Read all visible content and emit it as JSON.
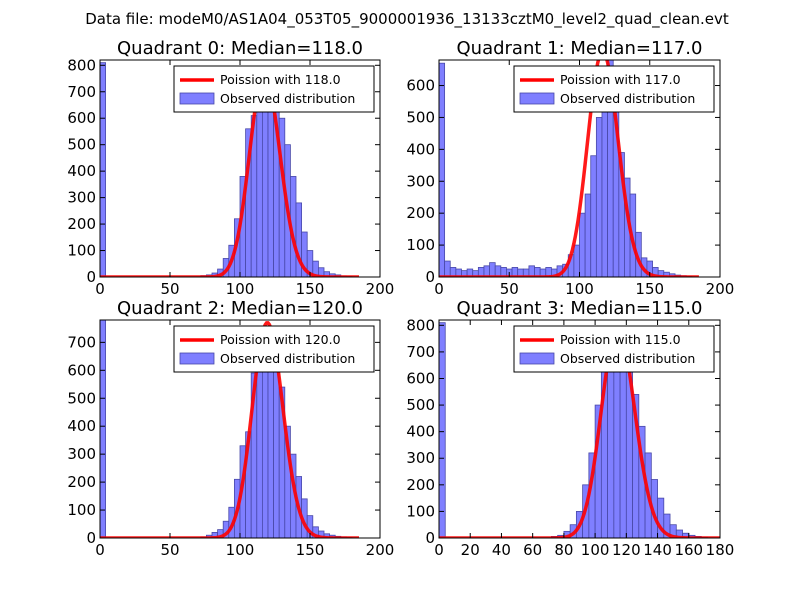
{
  "page_title": "Data file: modeM0/AS1A04_053T05_9000001936_13133cztM0_level2_quad_clean.evt",
  "colors": {
    "hist_fill": "#7f7fff",
    "hist_edge": "#4848a8",
    "poisson_line": "#ff0000"
  },
  "chart_data": [
    {
      "type": "bar",
      "title": "Quadrant 0: Median=118.0",
      "median": 118.0,
      "xlim": [
        0,
        200
      ],
      "ylim": [
        0,
        820
      ],
      "xticks": [
        0,
        50,
        100,
        150,
        200
      ],
      "yticks": [
        0,
        100,
        200,
        300,
        400,
        500,
        600,
        700,
        800
      ],
      "bin_width": 4,
      "bins": [
        [
          0,
          810
        ],
        [
          72,
          5
        ],
        [
          76,
          8
        ],
        [
          80,
          15
        ],
        [
          84,
          30
        ],
        [
          88,
          70
        ],
        [
          92,
          120
        ],
        [
          96,
          220
        ],
        [
          100,
          380
        ],
        [
          104,
          560
        ],
        [
          108,
          610
        ],
        [
          112,
          700
        ],
        [
          116,
          740
        ],
        [
          120,
          720
        ],
        [
          124,
          690
        ],
        [
          128,
          600
        ],
        [
          132,
          500
        ],
        [
          136,
          380
        ],
        [
          140,
          280
        ],
        [
          144,
          170
        ],
        [
          148,
          100
        ],
        [
          152,
          60
        ],
        [
          156,
          35
        ],
        [
          160,
          20
        ],
        [
          164,
          12
        ],
        [
          168,
          8
        ],
        [
          172,
          4
        ],
        [
          176,
          2
        ]
      ],
      "legend": [
        "Poission with 118.0",
        "Observed distribution"
      ]
    },
    {
      "type": "bar",
      "title": "Quadrant 1: Median=117.0",
      "median": 117.0,
      "xlim": [
        0,
        200
      ],
      "ylim": [
        0,
        680
      ],
      "xticks": [
        0,
        50,
        100,
        150,
        200
      ],
      "yticks": [
        0,
        100,
        200,
        300,
        400,
        500,
        600
      ],
      "bin_width": 4,
      "bins": [
        [
          0,
          670
        ],
        [
          4,
          50
        ],
        [
          8,
          30
        ],
        [
          12,
          25
        ],
        [
          16,
          20
        ],
        [
          20,
          25
        ],
        [
          24,
          20
        ],
        [
          28,
          30
        ],
        [
          32,
          35
        ],
        [
          36,
          45
        ],
        [
          40,
          35
        ],
        [
          44,
          30
        ],
        [
          48,
          25
        ],
        [
          52,
          30
        ],
        [
          56,
          25
        ],
        [
          60,
          25
        ],
        [
          64,
          35
        ],
        [
          68,
          30
        ],
        [
          72,
          25
        ],
        [
          76,
          30
        ],
        [
          80,
          25
        ],
        [
          84,
          35
        ],
        [
          88,
          40
        ],
        [
          92,
          70
        ],
        [
          96,
          100
        ],
        [
          100,
          200
        ],
        [
          104,
          260
        ],
        [
          108,
          380
        ],
        [
          112,
          500
        ],
        [
          116,
          590
        ],
        [
          120,
          680
        ],
        [
          124,
          520
        ],
        [
          128,
          390
        ],
        [
          132,
          310
        ],
        [
          136,
          260
        ],
        [
          140,
          140
        ],
        [
          144,
          60
        ],
        [
          148,
          50
        ],
        [
          152,
          30
        ],
        [
          156,
          20
        ],
        [
          160,
          15
        ],
        [
          164,
          10
        ],
        [
          168,
          6
        ],
        [
          172,
          4
        ],
        [
          176,
          2
        ]
      ],
      "legend": [
        "Poission with 117.0",
        "Observed distribution"
      ]
    },
    {
      "type": "bar",
      "title": "Quadrant 2: Median=120.0",
      "median": 120.0,
      "xlim": [
        0,
        200
      ],
      "ylim": [
        0,
        780
      ],
      "xticks": [
        0,
        50,
        100,
        150,
        200
      ],
      "yticks": [
        0,
        100,
        200,
        300,
        400,
        500,
        600,
        700
      ],
      "bin_width": 4,
      "bins": [
        [
          0,
          780
        ],
        [
          72,
          4
        ],
        [
          76,
          10
        ],
        [
          80,
          20
        ],
        [
          84,
          30
        ],
        [
          88,
          60
        ],
        [
          92,
          110
        ],
        [
          96,
          210
        ],
        [
          100,
          330
        ],
        [
          104,
          380
        ],
        [
          108,
          590
        ],
        [
          112,
          660
        ],
        [
          116,
          740
        ],
        [
          120,
          700
        ],
        [
          124,
          640
        ],
        [
          128,
          540
        ],
        [
          132,
          400
        ],
        [
          136,
          300
        ],
        [
          140,
          220
        ],
        [
          144,
          140
        ],
        [
          148,
          80
        ],
        [
          152,
          40
        ],
        [
          156,
          25
        ],
        [
          160,
          15
        ],
        [
          164,
          10
        ],
        [
          168,
          6
        ],
        [
          172,
          4
        ],
        [
          176,
          2
        ]
      ],
      "legend": [
        "Poission with 120.0",
        "Observed distribution"
      ]
    },
    {
      "type": "bar",
      "title": "Quadrant 3: Median=115.0",
      "median": 115.0,
      "xlim": [
        0,
        180
      ],
      "ylim": [
        0,
        820
      ],
      "xticks": [
        0,
        20,
        40,
        60,
        80,
        100,
        120,
        140,
        160,
        180
      ],
      "yticks": [
        0,
        100,
        200,
        300,
        400,
        500,
        600,
        700,
        800
      ],
      "bin_width": 4,
      "bins": [
        [
          0,
          810
        ],
        [
          72,
          6
        ],
        [
          76,
          10
        ],
        [
          80,
          25
        ],
        [
          84,
          50
        ],
        [
          88,
          100
        ],
        [
          92,
          200
        ],
        [
          96,
          320
        ],
        [
          100,
          500
        ],
        [
          104,
          640
        ],
        [
          108,
          680
        ],
        [
          112,
          760
        ],
        [
          116,
          750
        ],
        [
          120,
          700
        ],
        [
          124,
          540
        ],
        [
          128,
          420
        ],
        [
          132,
          320
        ],
        [
          136,
          220
        ],
        [
          140,
          150
        ],
        [
          144,
          90
        ],
        [
          148,
          50
        ],
        [
          152,
          30
        ],
        [
          156,
          18
        ],
        [
          160,
          10
        ],
        [
          164,
          6
        ],
        [
          168,
          3
        ]
      ],
      "legend": [
        "Poission with 115.0",
        "Observed distribution"
      ]
    }
  ]
}
